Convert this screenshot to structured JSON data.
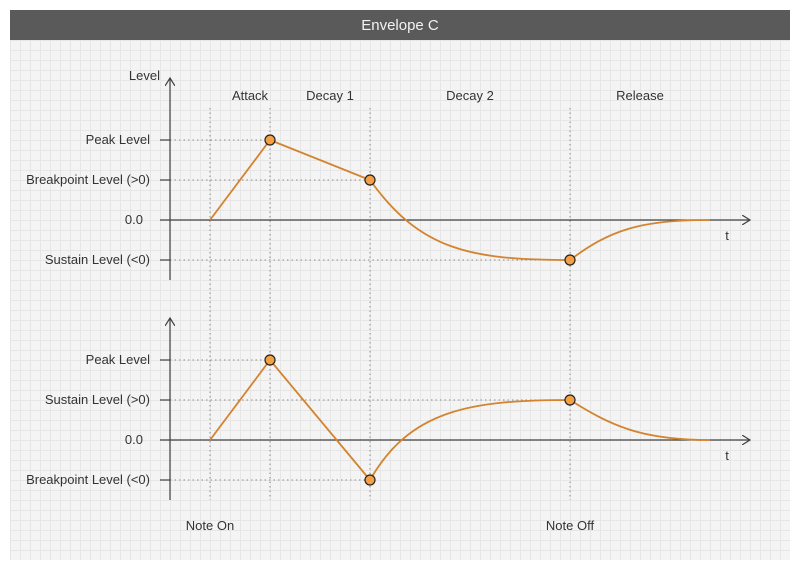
{
  "title": "Envelope C",
  "accent_color": "#d4832e",
  "top_plot": {
    "y_axis_label": "Level",
    "x_axis_label": "t",
    "stages": [
      "Attack",
      "Decay 1",
      "Decay 2",
      "Release"
    ],
    "levels": {
      "peak": "Peak Level",
      "breakpoint": "Breakpoint Level (>0)",
      "zero": "0.0",
      "sustain": "Sustain Level (<0)"
    }
  },
  "bottom_plot": {
    "x_axis_label": "t",
    "levels": {
      "peak": "Peak Level",
      "sustain": "Sustain Level (>0)",
      "zero": "0.0",
      "breakpoint": "Breakpoint Level (<0)"
    }
  },
  "events": {
    "note_on": "Note On",
    "note_off": "Note Off"
  }
}
